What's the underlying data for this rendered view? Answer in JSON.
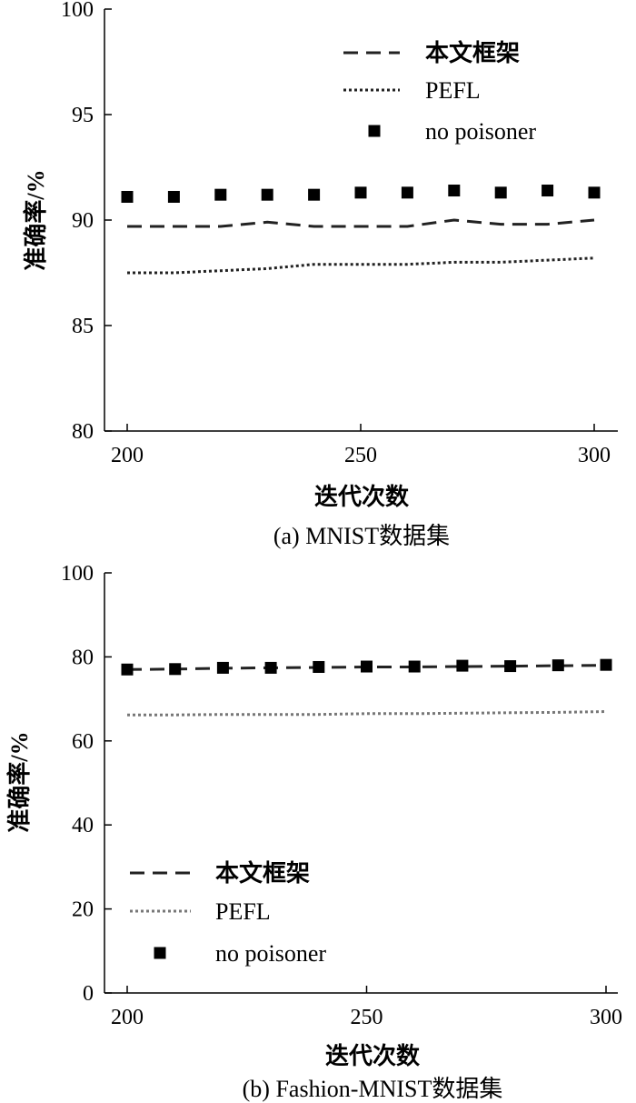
{
  "chart_data": [
    {
      "type": "line",
      "caption": "(a)  MNIST数据集",
      "xlabel": "迭代次数",
      "ylabel": "准确率/%",
      "xlim": [
        200,
        300
      ],
      "ylim": [
        80,
        100
      ],
      "xticks": [
        200,
        250,
        300
      ],
      "yticks": [
        80,
        85,
        90,
        95,
        100
      ],
      "legend_position": "top-right",
      "x": [
        200,
        210,
        220,
        230,
        240,
        250,
        260,
        270,
        280,
        290,
        300
      ],
      "series": [
        {
          "name": "本文框架",
          "style": "dashed",
          "color": "#222222",
          "values": [
            89.7,
            89.7,
            89.7,
            89.9,
            89.7,
            89.7,
            89.7,
            90.0,
            89.8,
            89.8,
            90.0
          ]
        },
        {
          "name": "PEFL",
          "style": "dotted",
          "color": "#222222",
          "values": [
            87.5,
            87.5,
            87.6,
            87.7,
            87.9,
            87.9,
            87.9,
            88.0,
            88.0,
            88.1,
            88.2
          ]
        },
        {
          "name": "no poisoner",
          "style": "markers",
          "color": "#000000",
          "values": [
            91.1,
            91.1,
            91.2,
            91.2,
            91.2,
            91.3,
            91.3,
            91.4,
            91.3,
            91.4,
            91.3
          ]
        }
      ]
    },
    {
      "type": "line",
      "caption": "(b)  Fashion-MNIST数据集",
      "xlabel": "迭代次数",
      "ylabel": "准确率/%",
      "xlim": [
        200,
        300
      ],
      "ylim": [
        0,
        100
      ],
      "xticks": [
        200,
        250,
        300
      ],
      "yticks": [
        0,
        20,
        40,
        60,
        80,
        100
      ],
      "legend_position": "bottom-left",
      "x": [
        200,
        210,
        220,
        230,
        240,
        250,
        260,
        270,
        280,
        290,
        300
      ],
      "series": [
        {
          "name": "本文框架",
          "style": "dashed",
          "color": "#222222",
          "values": [
            77.0,
            77.1,
            77.3,
            77.4,
            77.5,
            77.6,
            77.6,
            77.7,
            77.8,
            77.9,
            78.0
          ]
        },
        {
          "name": "PEFL",
          "style": "dotted",
          "color": "#777777",
          "values": [
            66.2,
            66.2,
            66.3,
            66.3,
            66.3,
            66.5,
            66.5,
            66.6,
            66.7,
            66.8,
            67.0
          ]
        },
        {
          "name": "no poisoner",
          "style": "markers",
          "color": "#000000",
          "values": [
            77.0,
            77.1,
            77.4,
            77.4,
            77.6,
            77.7,
            77.7,
            77.9,
            77.8,
            78.0,
            78.1
          ]
        }
      ]
    }
  ]
}
